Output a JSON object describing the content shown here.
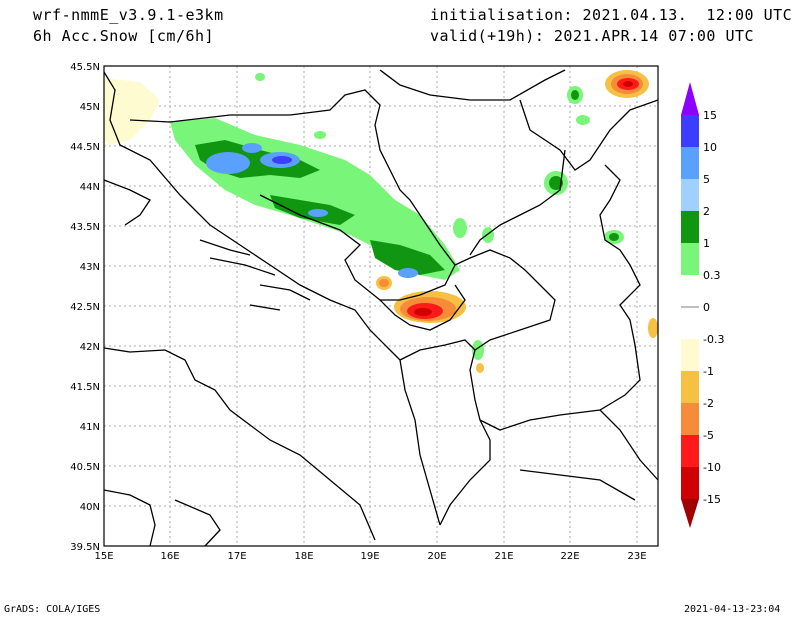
{
  "header": {
    "model": "wrf-nmmE_v3.9.1-e3km",
    "field": "6h Acc.Snow [cm/6h]",
    "init": "initialisation: 2021.04.13.  12:00 UTC",
    "valid": "valid(+19h): 2021.APR.14 07:00 UTC"
  },
  "axes": {
    "lat_labels": [
      "45.5N",
      "45N",
      "44.5N",
      "44N",
      "43.5N",
      "43N",
      "42.5N",
      "42N",
      "41.5N",
      "41N",
      "40.5N",
      "40N",
      "39.5N"
    ],
    "lon_labels": [
      "15E",
      "16E",
      "17E",
      "18E",
      "19E",
      "20E",
      "21E",
      "22E",
      "23E"
    ]
  },
  "colorbar": {
    "labels": [
      "15",
      "10",
      "5",
      "2",
      "1",
      "0.3",
      "0",
      "-0.3",
      "-1",
      "-2",
      "-5",
      "-10",
      "-15"
    ],
    "colors": [
      "#8c00ff",
      "#3d3dff",
      "#5aa0ff",
      "#9fd0ff",
      "#119611",
      "#79f579",
      "#ffffff",
      "#fffbd0",
      "#f6c043",
      "#f68c3a",
      "#ff1a1a",
      "#d10000",
      "#a00000"
    ]
  },
  "footer": {
    "left": "GrADS: COLA/IGES",
    "right": "2021-04-13-23:04"
  }
}
